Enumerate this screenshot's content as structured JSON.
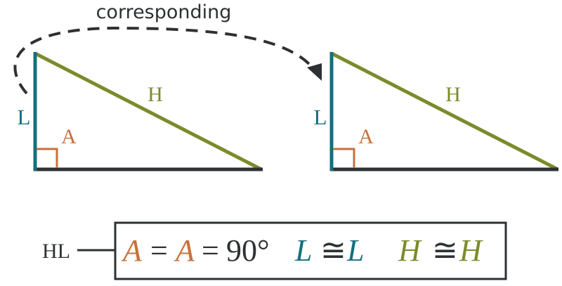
{
  "colors": {
    "leg": "#14707e",
    "hypotenuse": "#7b8b2b",
    "angle": "#c8713a",
    "base": "#2e3133",
    "text_dark": "#2e3133"
  },
  "arrow_label": "corresponding",
  "triangle_left": {
    "leg_label": "L",
    "hyp_label": "H",
    "angle_label": "A"
  },
  "triangle_right": {
    "leg_label": "L",
    "hyp_label": "H",
    "angle_label": "A"
  },
  "formula": {
    "tag": "HL",
    "angle_a1": "A",
    "eq1": "=",
    "angle_a2": "A",
    "eq2": "=",
    "degrees": "90°",
    "leg_l1": "L",
    "congruent1": "≅",
    "leg_l2": "L",
    "hyp_h1": "H",
    "congruent2": "≅",
    "hyp_h2": "H"
  }
}
